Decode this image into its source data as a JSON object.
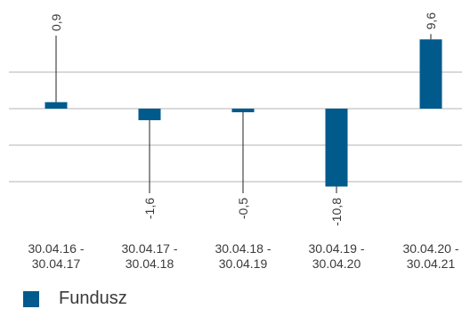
{
  "chart_data": {
    "type": "bar",
    "categories": [
      "30.04.16 - 30.04.17",
      "30.04.17 - 30.04.18",
      "30.04.18 - 30.04.19",
      "30.04.19 - 30.04.20",
      "30.04.20 - 30.04.21"
    ],
    "series": [
      {
        "name": "Fundusz",
        "values": [
          0.9,
          -1.6,
          -0.5,
          -10.8,
          9.6
        ]
      }
    ],
    "data_labels": [
      "0,9",
      "-1,6",
      "-0,5",
      "-10,8",
      "9,6"
    ],
    "title": "",
    "xlabel": "",
    "ylabel": "",
    "ylim": [
      -10.8,
      9.6
    ],
    "grid": true,
    "legend": "bottom-left",
    "bar_color": "#005a8c"
  },
  "legend": {
    "label": "Fundusz"
  }
}
